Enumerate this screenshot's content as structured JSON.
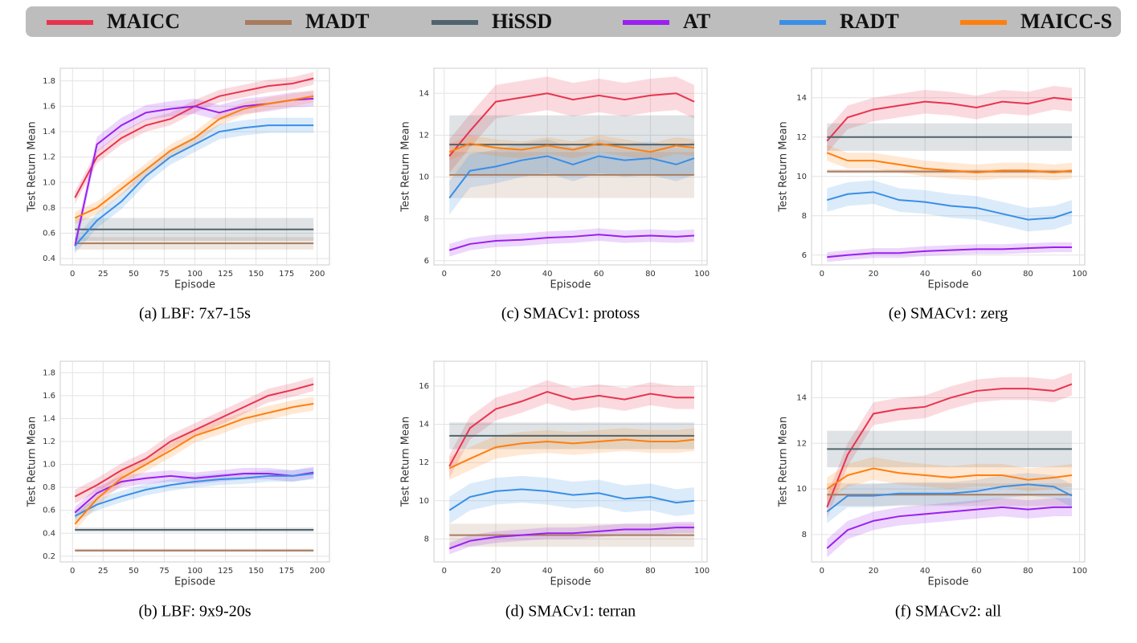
{
  "legend": [
    {
      "name": "MAICC",
      "color": "#e8344e"
    },
    {
      "name": "MADT",
      "color": "#a87c5f"
    },
    {
      "name": "HiSSD",
      "color": "#50646e"
    },
    {
      "name": "AT",
      "color": "#9b1ff0"
    },
    {
      "name": "RADT",
      "color": "#3a8ee6"
    },
    {
      "name": "MAICC-S",
      "color": "#ff7f0e"
    }
  ],
  "chart_data": [
    {
      "type": "line",
      "caption": "(a) LBF: 7x7-15s",
      "xlabel": "Episode",
      "ylabel": "Test Return Mean",
      "grid": true,
      "x": [
        2,
        20,
        40,
        60,
        80,
        100,
        120,
        140,
        160,
        180,
        197
      ],
      "xlim": [
        -10,
        210
      ],
      "xticks": [
        0,
        25,
        50,
        75,
        100,
        125,
        150,
        175,
        200
      ],
      "ylim": [
        0.35,
        1.9
      ],
      "yticks": [
        0.4,
        0.6,
        0.8,
        {
          "value": 1,
          "label": "1.0"
        },
        1.2,
        1.4,
        1.6,
        1.8
      ],
      "series": [
        {
          "values": [
            0.88,
            1.2,
            1.35,
            1.45,
            1.5,
            1.6,
            1.68,
            1.72,
            1.76,
            1.78,
            1.82
          ],
          "band": 0.05
        },
        {
          "values": [
            0.52,
            0.52,
            0.52,
            0.52,
            0.52,
            0.52,
            0.52,
            0.52,
            0.52,
            0.52,
            0.52
          ],
          "band": 0.05
        },
        {
          "values": [
            0.63,
            0.63,
            0.63,
            0.63,
            0.63,
            0.63,
            0.63,
            0.63,
            0.63,
            0.63,
            0.63
          ],
          "band": 0.09
        },
        {
          "values": [
            0.5,
            1.3,
            1.45,
            1.55,
            1.58,
            1.6,
            1.55,
            1.6,
            1.62,
            1.65,
            1.66
          ],
          "band": 0.06
        },
        {
          "values": [
            0.5,
            0.7,
            0.85,
            1.05,
            1.2,
            1.3,
            1.4,
            1.43,
            1.45,
            1.45,
            1.45
          ],
          "band": 0.06
        },
        {
          "values": [
            0.72,
            0.8,
            0.95,
            1.1,
            1.25,
            1.35,
            1.5,
            1.58,
            1.62,
            1.65,
            1.68
          ],
          "band": 0.05
        }
      ]
    },
    {
      "type": "line",
      "caption": "(c) SMACv1: protoss",
      "xlabel": "Episode",
      "ylabel": "Test Return Mean",
      "grid": true,
      "x": [
        2,
        10,
        20,
        30,
        40,
        50,
        60,
        70,
        80,
        90,
        97
      ],
      "xlim": [
        -4,
        102
      ],
      "xticks": [
        0,
        20,
        40,
        60,
        80,
        100
      ],
      "ylim": [
        5.8,
        15.2
      ],
      "yticks": [
        6,
        8,
        10,
        12,
        14
      ],
      "series": [
        {
          "values": [
            11,
            12.2,
            13.6,
            13.8,
            14,
            13.7,
            13.9,
            13.7,
            13.9,
            14,
            13.6
          ],
          "band": 0.8
        },
        {
          "values": [
            10.1,
            10.1,
            10.1,
            10.1,
            10.1,
            10.1,
            10.1,
            10.1,
            10.1,
            10.1,
            10.1
          ],
          "band": 1.1
        },
        {
          "values": [
            11.55,
            11.55,
            11.55,
            11.55,
            11.55,
            11.55,
            11.55,
            11.55,
            11.55,
            11.55,
            11.55
          ],
          "band": 1.4
        },
        {
          "values": [
            6.5,
            6.8,
            6.95,
            7.0,
            7.1,
            7.15,
            7.25,
            7.15,
            7.2,
            7.15,
            7.2
          ],
          "band": 0.3
        },
        {
          "values": [
            9.0,
            10.3,
            10.5,
            10.8,
            11,
            10.6,
            11,
            10.8,
            10.9,
            10.6,
            10.9
          ],
          "band": 0.8
        },
        {
          "values": [
            11.2,
            11.6,
            11.4,
            11.3,
            11.5,
            11.3,
            11.6,
            11.4,
            11.2,
            11.5,
            11.4
          ],
          "band": 0.4
        }
      ]
    },
    {
      "type": "line",
      "caption": "(e) SMACv1: zerg",
      "xlabel": "Episode",
      "ylabel": "Test Return Mean",
      "grid": true,
      "x": [
        2,
        10,
        20,
        30,
        40,
        50,
        60,
        70,
        80,
        90,
        97
      ],
      "xlim": [
        -4,
        102
      ],
      "xticks": [
        0,
        20,
        40,
        60,
        80,
        100
      ],
      "ylim": [
        5.5,
        15.5
      ],
      "yticks": [
        6,
        8,
        10,
        12,
        14
      ],
      "series": [
        {
          "values": [
            11.8,
            13,
            13.4,
            13.6,
            13.8,
            13.7,
            13.5,
            13.8,
            13.7,
            14,
            13.9
          ],
          "band": 0.6
        },
        {
          "values": [
            10.25,
            10.25,
            10.25,
            10.25,
            10.25,
            10.25,
            10.25,
            10.25,
            10.25,
            10.25,
            10.25
          ],
          "band": 0.1
        },
        {
          "values": [
            12,
            12,
            12,
            12,
            12,
            12,
            12,
            12,
            12,
            12,
            12
          ],
          "band": 0.7
        },
        {
          "values": [
            5.9,
            6.0,
            6.1,
            6.1,
            6.2,
            6.25,
            6.3,
            6.3,
            6.35,
            6.4,
            6.4
          ],
          "band": 0.25
        },
        {
          "values": [
            8.8,
            9.1,
            9.2,
            8.8,
            8.7,
            8.5,
            8.4,
            8.1,
            7.8,
            7.9,
            8.2
          ],
          "band": 0.6
        },
        {
          "values": [
            11.2,
            10.8,
            10.8,
            10.6,
            10.4,
            10.3,
            10.2,
            10.3,
            10.3,
            10.2,
            10.3
          ],
          "band": 0.4
        }
      ]
    },
    {
      "type": "line",
      "caption": "(b) LBF: 9x9-20s",
      "xlabel": "Episode",
      "ylabel": "Test Return Mean",
      "grid": true,
      "x": [
        2,
        20,
        40,
        60,
        80,
        100,
        120,
        140,
        160,
        180,
        197
      ],
      "xlim": [
        -10,
        210
      ],
      "xticks": [
        0,
        25,
        50,
        75,
        100,
        125,
        150,
        175,
        200
      ],
      "ylim": [
        0.15,
        1.9
      ],
      "yticks": [
        0.2,
        0.4,
        0.6,
        0.8,
        {
          "value": 1,
          "label": "1.0"
        },
        1.2,
        1.4,
        1.6,
        1.8
      ],
      "series": [
        {
          "values": [
            0.72,
            0.82,
            0.95,
            1.05,
            1.2,
            1.3,
            1.4,
            1.5,
            1.6,
            1.65,
            1.7
          ],
          "band": 0.06
        },
        {
          "values": [
            0.25,
            0.25,
            0.25,
            0.25,
            0.25,
            0.25,
            0.25,
            0.25,
            0.25,
            0.25,
            0.25
          ],
          "band": 0.015
        },
        {
          "values": [
            0.43,
            0.43,
            0.43,
            0.43,
            0.43,
            0.43,
            0.43,
            0.43,
            0.43,
            0.43,
            0.43
          ],
          "band": 0.02
        },
        {
          "values": [
            0.58,
            0.75,
            0.85,
            0.88,
            0.9,
            0.88,
            0.9,
            0.92,
            0.92,
            0.9,
            0.93
          ],
          "band": 0.05
        },
        {
          "values": [
            0.55,
            0.65,
            0.72,
            0.78,
            0.82,
            0.85,
            0.87,
            0.88,
            0.9,
            0.9,
            0.92
          ],
          "band": 0.05
        },
        {
          "values": [
            0.48,
            0.7,
            0.88,
            1.0,
            1.12,
            1.25,
            1.32,
            1.4,
            1.45,
            1.5,
            1.53
          ],
          "band": 0.06
        }
      ]
    },
    {
      "type": "line",
      "caption": "(d) SMACv1: terran",
      "xlabel": "Episode",
      "ylabel": "Test Return Mean",
      "grid": true,
      "x": [
        2,
        10,
        20,
        30,
        40,
        50,
        60,
        70,
        80,
        90,
        97
      ],
      "xlim": [
        -4,
        102
      ],
      "xticks": [
        0,
        20,
        40,
        60,
        80,
        100
      ],
      "ylim": [
        6.8,
        17.3
      ],
      "yticks": [
        8,
        10,
        12,
        14,
        16
      ],
      "series": [
        {
          "values": [
            11.8,
            13.8,
            14.8,
            15.2,
            15.7,
            15.3,
            15.5,
            15.3,
            15.6,
            15.4,
            15.4
          ],
          "band": 0.6
        },
        {
          "values": [
            8.2,
            8.2,
            8.2,
            8.2,
            8.2,
            8.2,
            8.2,
            8.2,
            8.2,
            8.2,
            8.2
          ],
          "band": 0.6
        },
        {
          "values": [
            13.4,
            13.4,
            13.4,
            13.4,
            13.4,
            13.4,
            13.4,
            13.4,
            13.4,
            13.4,
            13.4
          ],
          "band": 0.7
        },
        {
          "values": [
            7.5,
            7.9,
            8.1,
            8.2,
            8.3,
            8.3,
            8.4,
            8.5,
            8.5,
            8.6,
            8.6
          ],
          "band": 0.3
        },
        {
          "values": [
            9.5,
            10.2,
            10.5,
            10.6,
            10.5,
            10.3,
            10.4,
            10.1,
            10.2,
            9.9,
            10
          ],
          "band": 0.7
        },
        {
          "values": [
            11.7,
            12.2,
            12.8,
            13,
            13.1,
            13,
            13.1,
            13.2,
            13.1,
            13.1,
            13.2
          ],
          "band": 0.6
        }
      ]
    },
    {
      "type": "line",
      "caption": "(f) SMACv2: all",
      "xlabel": "Episode",
      "ylabel": "Test Return Mean",
      "grid": true,
      "x": [
        2,
        10,
        20,
        30,
        40,
        50,
        60,
        70,
        80,
        90,
        97
      ],
      "xlim": [
        -4,
        102
      ],
      "xticks": [
        0,
        20,
        40,
        60,
        80,
        100
      ],
      "ylim": [
        6.8,
        15.6
      ],
      "yticks": [
        8,
        10,
        12,
        14
      ],
      "series": [
        {
          "values": [
            9.2,
            11.5,
            13.3,
            13.5,
            13.6,
            14,
            14.3,
            14.4,
            14.4,
            14.3,
            14.6
          ],
          "band": 0.5
        },
        {
          "values": [
            9.75,
            9.75,
            9.75,
            9.75,
            9.75,
            9.75,
            9.75,
            9.75,
            9.75,
            9.75,
            9.75
          ],
          "band": 0.5
        },
        {
          "values": [
            11.75,
            11.75,
            11.75,
            11.75,
            11.75,
            11.75,
            11.75,
            11.75,
            11.75,
            11.75,
            11.75
          ],
          "band": 0.8
        },
        {
          "values": [
            7.4,
            8.2,
            8.6,
            8.8,
            8.9,
            9.0,
            9.1,
            9.2,
            9.1,
            9.2,
            9.2
          ],
          "band": 0.4
        },
        {
          "values": [
            9,
            9.7,
            9.7,
            9.8,
            9.8,
            9.8,
            9.9,
            10.1,
            10.2,
            10.1,
            9.7
          ],
          "band": 0.5
        },
        {
          "values": [
            10,
            10.6,
            10.9,
            10.7,
            10.6,
            10.5,
            10.6,
            10.6,
            10.4,
            10.5,
            10.6
          ],
          "band": 0.5
        }
      ]
    }
  ]
}
